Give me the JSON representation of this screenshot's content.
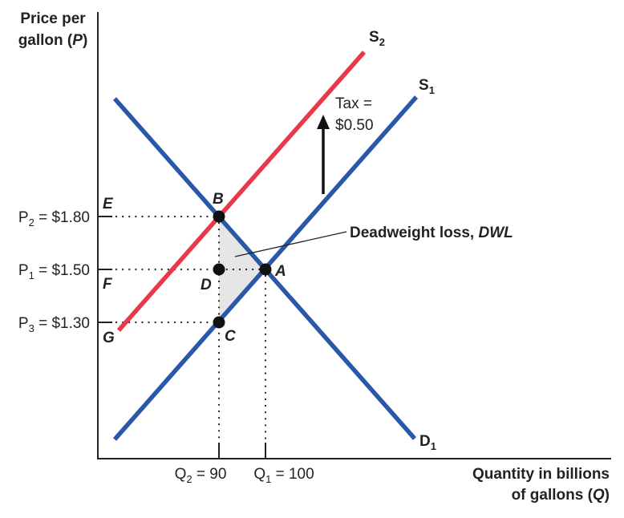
{
  "axes": {
    "y_title_line1": "Price per",
    "y_title_line2_main": "gallon (",
    "y_title_line2_var": "P",
    "y_title_line2_end": ")",
    "x_title_line1": "Quantity in billions",
    "x_title_line2_main": "of gallons (",
    "x_title_line2_var": "Q",
    "x_title_line2_end": ")"
  },
  "y_ticks": [
    {
      "main": "P",
      "sub": "2",
      "rest": " = $1.80",
      "price": 1.8
    },
    {
      "main": "P",
      "sub": "1",
      "rest": " = $1.50",
      "price": 1.5
    },
    {
      "main": "P",
      "sub": "3",
      "rest": " = $1.30",
      "price": 1.3
    }
  ],
  "x_ticks": [
    {
      "main": "Q",
      "sub": "2",
      "rest": " = 90",
      "quantity": 90
    },
    {
      "main": "Q",
      "sub": "1",
      "rest": " = 100",
      "quantity": 100
    }
  ],
  "curves": {
    "s2": {
      "main": "S",
      "sub": "2",
      "color": "#e8394a"
    },
    "s1": {
      "main": "S",
      "sub": "1",
      "color": "#2a58a8"
    },
    "d1": {
      "main": "D",
      "sub": "1",
      "color": "#2a58a8"
    }
  },
  "points": {
    "a": "A",
    "b": "B",
    "c": "C",
    "d": "D",
    "e": "E",
    "f": "F",
    "g": "G"
  },
  "tax": {
    "line1": "Tax =",
    "line2": "$0.50"
  },
  "dwl": {
    "text": "Deadweight loss, ",
    "abbr": "DWL",
    "fill": "#e6e6e6"
  }
}
